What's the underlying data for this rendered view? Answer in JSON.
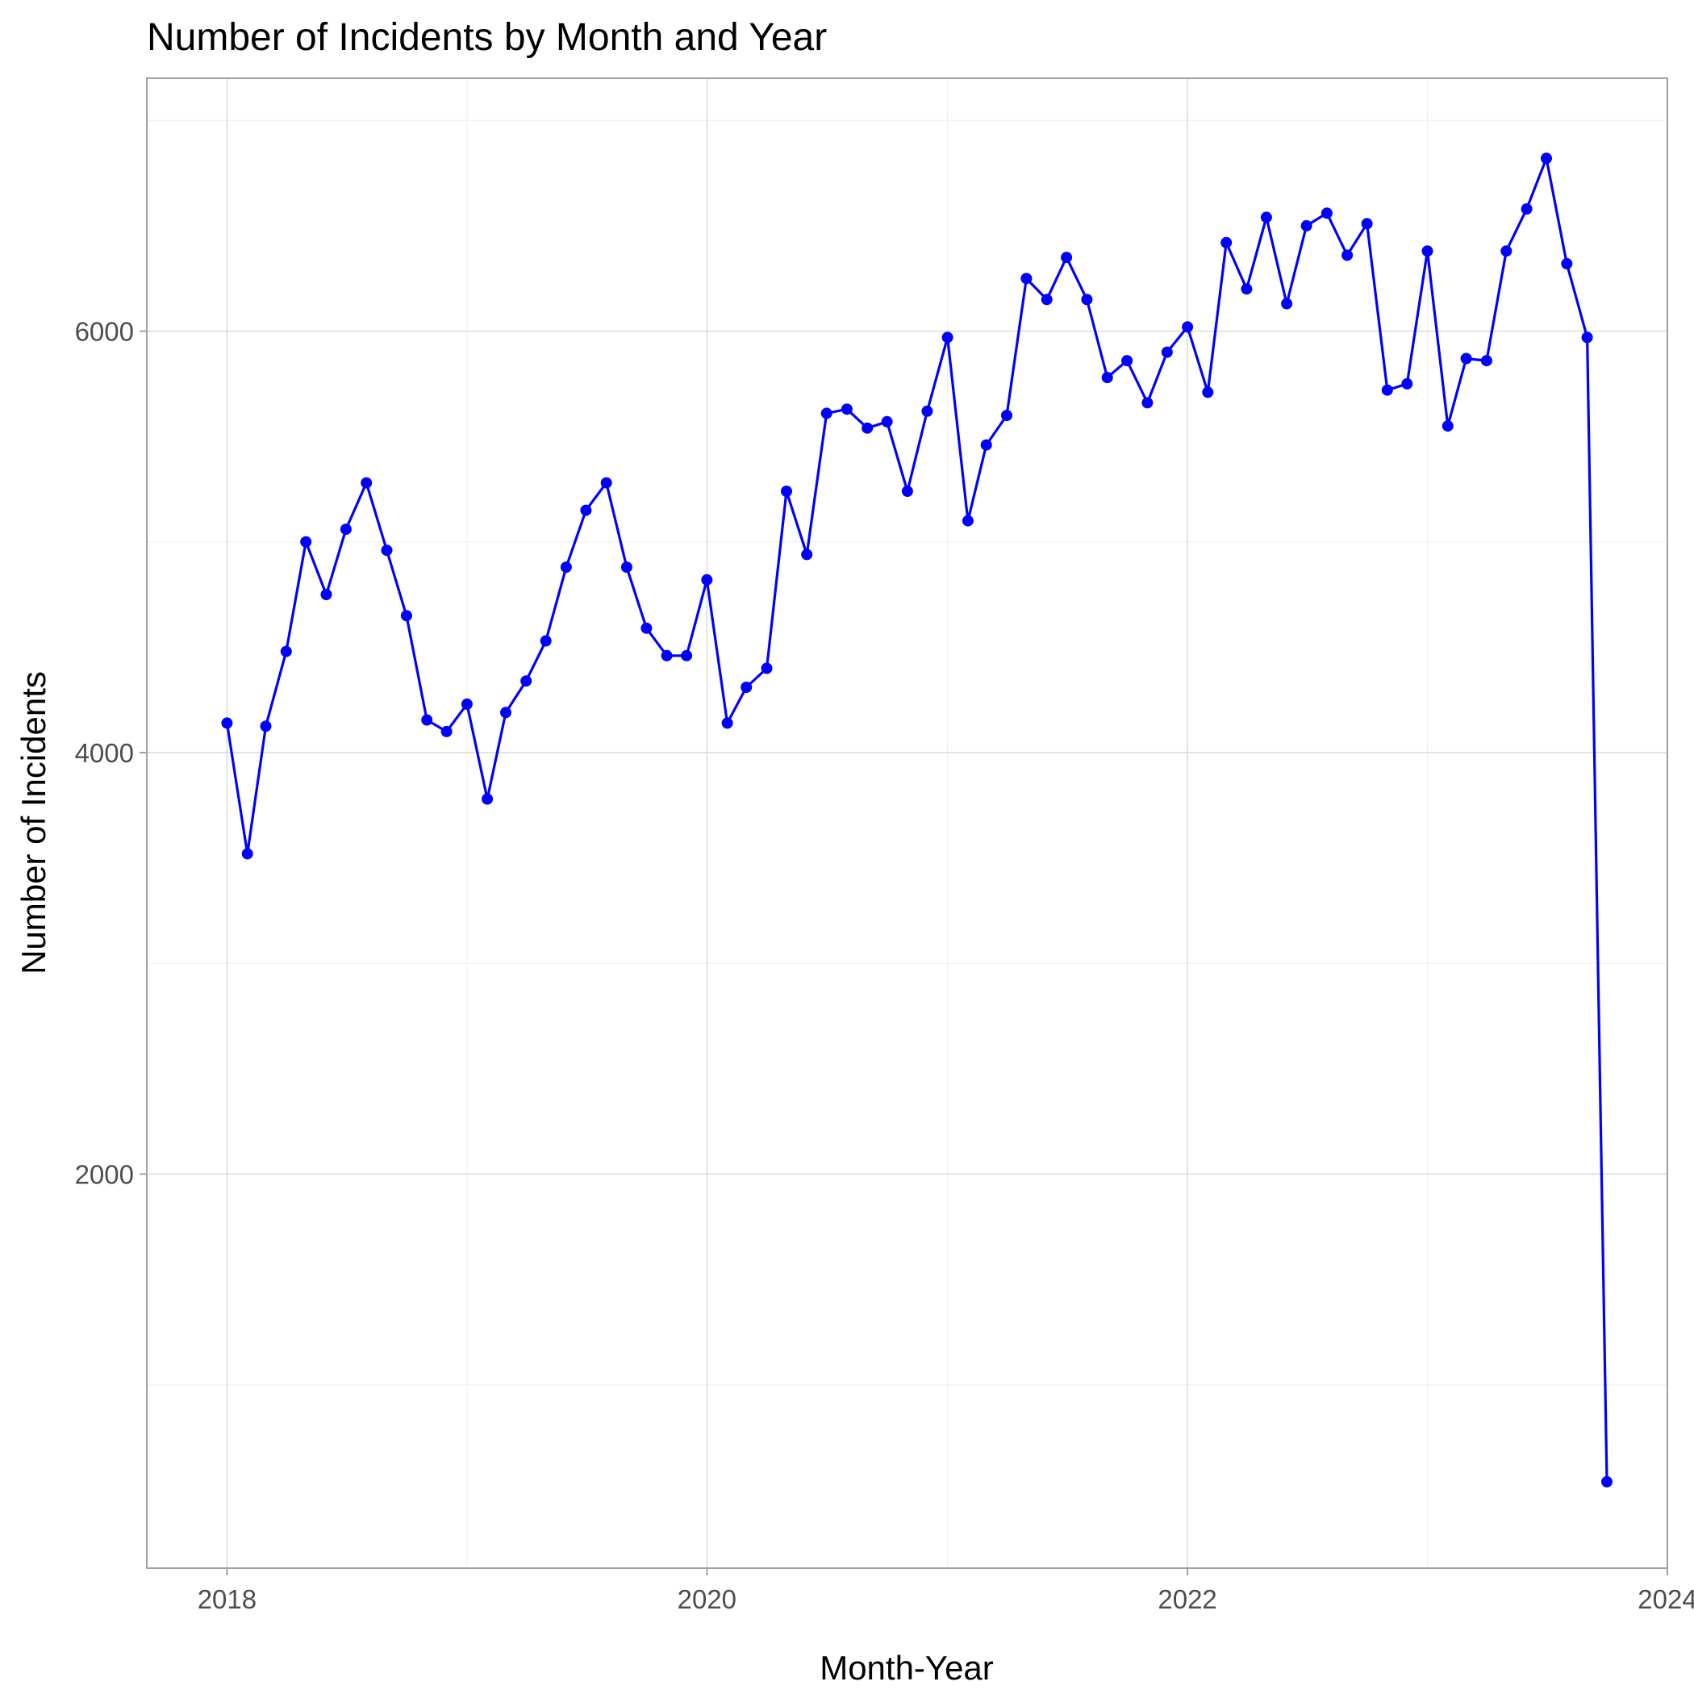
{
  "chart_data": {
    "type": "line",
    "title": "Number of Incidents by Month and Year",
    "xlabel": "Month-Year",
    "ylabel": "Number of Incidents",
    "xlim": [
      "2017-09-01",
      "2024-01-01"
    ],
    "ylim": [
      130,
      7200
    ],
    "x_ticks": [
      "2018",
      "2020",
      "2022",
      "2024"
    ],
    "y_ticks": [
      2000,
      4000,
      6000
    ],
    "grid": true,
    "color": "#0000ff",
    "series": [
      {
        "x": [
          "2018-01",
          "2018-02",
          "2018-03",
          "2018-04",
          "2018-05",
          "2018-06",
          "2018-07",
          "2018-08",
          "2018-09",
          "2018-10",
          "2018-11",
          "2018-12",
          "2019-01",
          "2019-02",
          "2019-03",
          "2019-04",
          "2019-05",
          "2019-06",
          "2019-07",
          "2019-08",
          "2019-09",
          "2019-10",
          "2019-11",
          "2019-12",
          "2020-01",
          "2020-02",
          "2020-03",
          "2020-04",
          "2020-05",
          "2020-06",
          "2020-07",
          "2020-08",
          "2020-09",
          "2020-10",
          "2020-11",
          "2020-12",
          "2021-01",
          "2021-02",
          "2021-03",
          "2021-04",
          "2021-05",
          "2021-06",
          "2021-07",
          "2021-08",
          "2021-09",
          "2021-10",
          "2021-11",
          "2021-12",
          "2022-01",
          "2022-02",
          "2022-03",
          "2022-04",
          "2022-05",
          "2022-06",
          "2022-07",
          "2022-08",
          "2022-09",
          "2022-10",
          "2022-11",
          "2022-12",
          "2023-01",
          "2023-02",
          "2023-03",
          "2023-04",
          "2023-05",
          "2023-06",
          "2023-07",
          "2023-08",
          "2023-09",
          "2023-10"
        ],
        "values": [
          4140,
          3520,
          4125,
          4480,
          5000,
          4750,
          5060,
          5280,
          4960,
          4650,
          4155,
          4100,
          4230,
          3780,
          4190,
          4340,
          4530,
          4880,
          5150,
          5280,
          4880,
          4590,
          4460,
          4460,
          4820,
          4140,
          4310,
          4400,
          5240,
          4940,
          5610,
          5630,
          5540,
          5570,
          5240,
          5620,
          5970,
          5100,
          5460,
          5600,
          6250,
          6150,
          6350,
          6150,
          5780,
          5860,
          5660,
          5900,
          6020,
          5710,
          6420,
          6200,
          6540,
          6130,
          6500,
          6560,
          6360,
          6510,
          5720,
          5750,
          6380,
          5550,
          5870,
          5860,
          6380,
          6580,
          6820,
          6320,
          5970,
          540
        ]
      }
    ]
  }
}
